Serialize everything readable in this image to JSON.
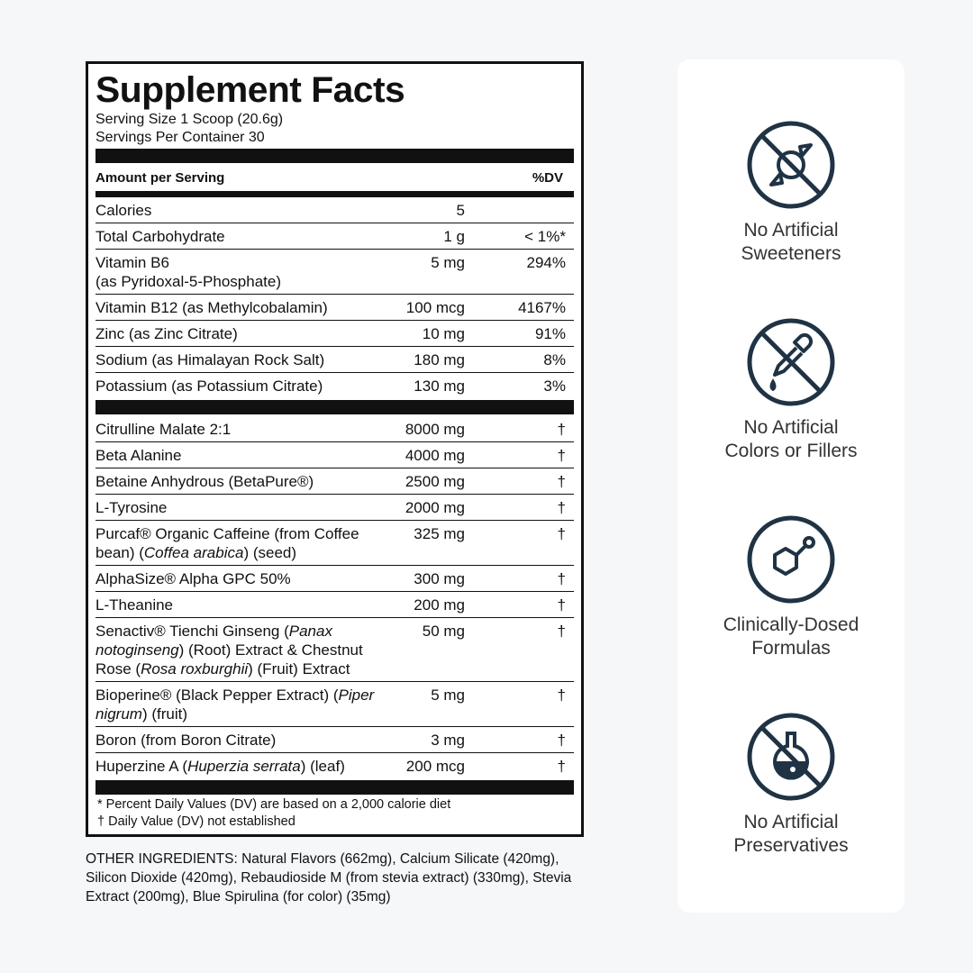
{
  "label": {
    "title": "Supplement Facts",
    "serving_size": "Serving Size 1 Scoop (20.6g)",
    "servings": "Servings Per Container 30",
    "header": {
      "amount": "Amount per Serving",
      "dv": "%DV"
    },
    "nutrients": [
      {
        "name": [
          {
            "text": "Calories"
          }
        ],
        "amount": "5"
      },
      {
        "name": [
          {
            "text": "Total Carbohydrate"
          }
        ],
        "amount": "1 g",
        "dv": "< 1%*"
      },
      {
        "name": [
          {
            "text": "Vitamin B6"
          }
        ],
        "sub": "(as Pyridoxal-5-Phosphate)",
        "amount": "5 mg",
        "dv": "294%"
      },
      {
        "name": [
          {
            "text": "Vitamin B12 (as Methylcobalamin)"
          }
        ],
        "amount": "100 mcg",
        "dv": "4167%"
      },
      {
        "name": [
          {
            "text": "Zinc (as Zinc Citrate)"
          }
        ],
        "amount": "10 mg",
        "dv": "91%"
      },
      {
        "name": [
          {
            "text": "Sodium (as Himalayan Rock Salt)"
          }
        ],
        "amount": "180 mg",
        "dv": "8%"
      },
      {
        "name": [
          {
            "text": "Potassium (as Potassium Citrate)"
          }
        ],
        "amount": "130 mg",
        "dv": "3%"
      }
    ],
    "ingredients": [
      {
        "name": [
          {
            "text": "Citrulline Malate 2:1"
          }
        ],
        "amount": "8000 mg",
        "dv": "†"
      },
      {
        "name": [
          {
            "text": "Beta Alanine"
          }
        ],
        "amount": "4000 mg",
        "dv": "†"
      },
      {
        "name": [
          {
            "text": "Betaine Anhydrous (BetaPure®)"
          }
        ],
        "amount": "2500 mg",
        "dv": "†"
      },
      {
        "name": [
          {
            "text": "L-Tyrosine"
          }
        ],
        "amount": "2000 mg",
        "dv": "†"
      },
      {
        "name": [
          {
            "text": "Purcaf® Organic Caffeine (from Coffee bean) ("
          },
          {
            "text": "Coffea arabica",
            "italic": true
          },
          {
            "text": ") (seed)"
          }
        ],
        "amount": "325 mg",
        "dv": "†"
      },
      {
        "name": [
          {
            "text": "AlphaSize® Alpha GPC 50%"
          }
        ],
        "amount": "300 mg",
        "dv": "†"
      },
      {
        "name": [
          {
            "text": "L-Theanine"
          }
        ],
        "amount": "200 mg",
        "dv": "†"
      },
      {
        "name": [
          {
            "text": "Senactiv® Tienchi Ginseng ("
          },
          {
            "text": "Panax notoginseng",
            "italic": true
          },
          {
            "text": ") (Root) Extract & Chestnut Rose ("
          },
          {
            "text": "Rosa roxburghii",
            "italic": true
          },
          {
            "text": ") (Fruit) Extract"
          }
        ],
        "amount": "50 mg",
        "dv": "†"
      },
      {
        "name": [
          {
            "text": "Bioperine® (Black Pepper Extract) ("
          },
          {
            "text": "Piper nigrum",
            "italic": true
          },
          {
            "text": ") (fruit)"
          }
        ],
        "amount": "5 mg",
        "dv": "†"
      },
      {
        "name": [
          {
            "text": "Boron (from Boron Citrate)"
          }
        ],
        "amount": "3 mg",
        "dv": "†"
      },
      {
        "name": [
          {
            "text": "Huperzine A ("
          },
          {
            "text": "Huperzia serrata",
            "italic": true
          },
          {
            "text": ") (leaf)"
          }
        ],
        "amount": "200 mcg",
        "dv": "†"
      }
    ],
    "footnotes": [
      "*  Percent Daily Values (DV) are based on a 2,000 calorie diet",
      "† Daily Value (DV) not established"
    ]
  },
  "other_ingredients": "OTHER INGREDIENTS: Natural Flavors (662mg), Calcium Silicate (420mg), Silicon Dioxide (420mg), Rebaudioside M (from stevia extract) (330mg), Stevia Extract (200mg), Blue Spirulina (for color) (35mg)",
  "features": [
    {
      "lines": [
        "No Artificial",
        "Sweeteners"
      ]
    },
    {
      "lines": [
        "No Artificial",
        "Colors or Fillers"
      ]
    },
    {
      "lines": [
        "Clinically-Dosed",
        "Formulas"
      ]
    },
    {
      "lines": [
        "No Artificial",
        "Preservatives"
      ]
    }
  ]
}
